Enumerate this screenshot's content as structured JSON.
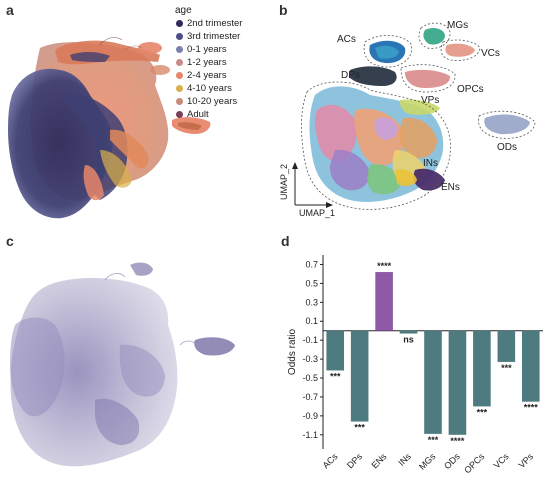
{
  "panels": {
    "a": "a",
    "b": "b",
    "c": "c",
    "d": "d"
  },
  "panel_a": {
    "legend_title": "age",
    "legend": [
      {
        "label": "2nd trimester",
        "color": "#2e2c5c"
      },
      {
        "label": "3rd trimester",
        "color": "#4a4f88"
      },
      {
        "label": "0-1 years",
        "color": "#7c7fae"
      },
      {
        "label": "1-2 years",
        "color": "#c98a8a"
      },
      {
        "label": "2-4 years",
        "color": "#e8866a"
      },
      {
        "label": "4-10 years",
        "color": "#d9b04a"
      },
      {
        "label": "10-20 years",
        "color": "#c98a7a"
      },
      {
        "label": "Adult",
        "color": "#7a3e58"
      }
    ]
  },
  "panel_b": {
    "clusters": [
      "ACs",
      "MGs",
      "VCs",
      "OPCs",
      "DPs",
      "VPs",
      "ODs",
      "INs",
      "ENs"
    ],
    "axis_x": "UMAP_1",
    "axis_y": "UMAP_2"
  },
  "chart_data": {
    "type": "bar",
    "categories": [
      "ACs",
      "DPs",
      "ENs",
      "INs",
      "MGs",
      "ODs",
      "OPCs",
      "VCs",
      "VPs"
    ],
    "values": [
      -0.42,
      -0.96,
      0.62,
      -0.03,
      -1.09,
      -1.1,
      -0.8,
      -0.33,
      -0.75
    ],
    "significance": [
      "***",
      "***",
      "****",
      "ns",
      "***",
      "****",
      "***",
      "***",
      "****"
    ],
    "colors": [
      "#4e7b80",
      "#4e7b80",
      "#8e5aa8",
      "#4e7b80",
      "#4e7b80",
      "#4e7b80",
      "#4e7b80",
      "#4e7b80",
      "#4e7b80"
    ],
    "ylabel": "Odds ratio",
    "ylim": [
      -1.25,
      0.8
    ],
    "yticks": [
      0.7,
      0.5,
      0.3,
      0.1,
      -0.1,
      -0.3,
      -0.5,
      -0.7,
      -0.9,
      -1.1
    ],
    "ytick_labels": [
      "0.7",
      "0.5",
      "0.3",
      "0.1",
      "-0.1",
      "-0.3",
      "-0.5",
      "-0.7",
      "-0.9",
      "-1.1"
    ],
    "grid": false
  }
}
